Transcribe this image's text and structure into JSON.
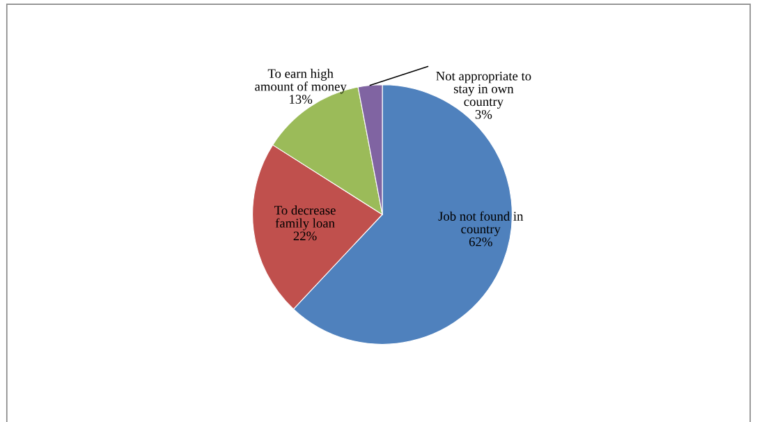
{
  "chart_data": {
    "type": "pie",
    "categories": [
      "Job not found in\ncountry",
      "To decrease\nfamily loan",
      "To earn high\namount of money",
      "Not appropriate to\nstay in own\ncountry"
    ],
    "values": [
      62,
      22,
      13,
      3
    ],
    "colors": [
      "#4f81bd",
      "#c0504d",
      "#9bbb59",
      "#8064a2"
    ],
    "value_labels": [
      "62%",
      "22%",
      "13%",
      "3%"
    ],
    "legend": false
  }
}
